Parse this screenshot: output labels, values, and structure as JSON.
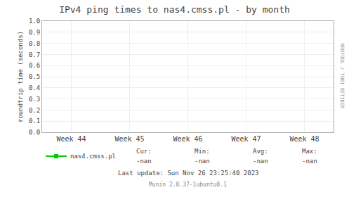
{
  "chart_data": {
    "type": "line",
    "title": "IPv4 ping times to nas4.cmss.pl - by month",
    "y_label": "roundtrip time (seconds)",
    "categories": [
      "Week 44",
      "Week 45",
      "Week 46",
      "Week 47",
      "Week 48"
    ],
    "series": [
      {
        "name": "nas4.cmss.pl",
        "color": "#00cc00",
        "values": [
          null,
          null,
          null,
          null,
          null
        ]
      }
    ],
    "ylim": [
      0.0,
      1.0
    ],
    "yticks": [
      {
        "value": 0.0,
        "label": "0.0"
      },
      0.1,
      0.2,
      0.3,
      0.4,
      0.5,
      0.6,
      0.7,
      0.8,
      0.9,
      {
        "value": 1.0,
        "label": "1.0"
      }
    ],
    "grid": true,
    "legend": "bottom",
    "annotations": [
      "Cur:",
      "-nan",
      "Min:",
      "-nan",
      "Avg:",
      "-nan",
      "Max:",
      "-nan",
      "Last update: Sun Nov 26 23:25:40 2023",
      "Munin 2.0.37-1ubuntu0.1",
      "RRDTOOL / TOBI OETIKER"
    ]
  }
}
